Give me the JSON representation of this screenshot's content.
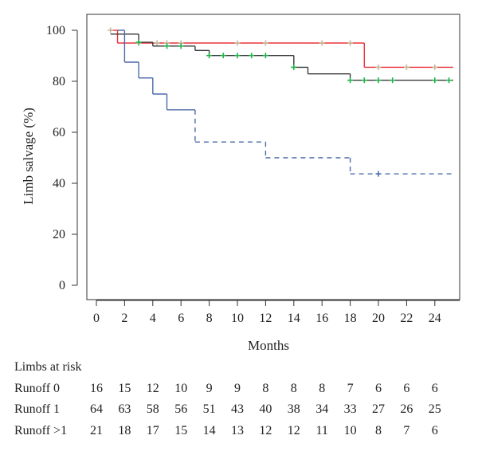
{
  "chart_data": {
    "type": "line",
    "step": true,
    "xlabel": "Months",
    "ylabel": "Limb salvage (%)",
    "xlim": [
      -1,
      25.3
    ],
    "ylim": [
      -5,
      106
    ],
    "x_ticks": [
      "0",
      "2",
      "4",
      "6",
      "8",
      "10",
      "12",
      "14",
      "16",
      "18",
      "20",
      "22",
      "24"
    ],
    "y_ticks": [
      "0",
      "20",
      "40",
      "60",
      "80",
      "100"
    ],
    "grid": false,
    "series": [
      {
        "color": "#e8333a",
        "line_style": "solid",
        "steps": [
          [
            1,
            100
          ],
          [
            1.5,
            95
          ],
          [
            19,
            95
          ],
          [
            19,
            85.5
          ],
          [
            25.3,
            85.5
          ]
        ],
        "censor_marks": [
          [
            1,
            100
          ],
          [
            3,
            95
          ],
          [
            4.3,
            95
          ],
          [
            5,
            95
          ],
          [
            6,
            95
          ],
          [
            10,
            95
          ],
          [
            12,
            95
          ],
          [
            16,
            95
          ],
          [
            18,
            95
          ],
          [
            20,
            85.5
          ],
          [
            22,
            85.5
          ],
          [
            24,
            85.5
          ]
        ],
        "censor_color": "#c8b89a"
      },
      {
        "color": "#3a3a3a",
        "line_style": "solid",
        "steps": [
          [
            1,
            98.5
          ],
          [
            3,
            95.3
          ],
          [
            4,
            93.8
          ],
          [
            7,
            92.1
          ],
          [
            8,
            90.1
          ],
          [
            14,
            85.5
          ],
          [
            15,
            82.9
          ],
          [
            18,
            80.4
          ],
          [
            25.3,
            80.4
          ]
        ],
        "censor_marks": [
          [
            3,
            95.3
          ],
          [
            5,
            93.8
          ],
          [
            6,
            93.8
          ],
          [
            8,
            90.1
          ],
          [
            9,
            90.1
          ],
          [
            10,
            90.1
          ],
          [
            11,
            90.1
          ],
          [
            12,
            90.1
          ],
          [
            14,
            85.5
          ],
          [
            18,
            80.4
          ],
          [
            19,
            80.4
          ],
          [
            20,
            80.4
          ],
          [
            21,
            80.4
          ],
          [
            24,
            80.4
          ],
          [
            25,
            80.4
          ]
        ],
        "censor_color": "#22b14c"
      },
      {
        "color": "#4a6aa8",
        "line_style": "solid",
        "dash_from": 7,
        "steps": [
          [
            1.5,
            100
          ],
          [
            2,
            87.5
          ],
          [
            3,
            81.3
          ],
          [
            4,
            75
          ],
          [
            5,
            68.8
          ],
          [
            7,
            56.2
          ],
          [
            12,
            50
          ],
          [
            18,
            43.7
          ],
          [
            25.3,
            43.7
          ]
        ],
        "censor_marks": [
          [
            20,
            43.7
          ]
        ],
        "censor_color": "#4a6aa8"
      }
    ]
  },
  "risk_table": {
    "title": "Limbs at risk",
    "months": [
      0,
      2,
      4,
      6,
      8,
      10,
      12,
      14,
      16,
      18,
      20,
      22,
      24
    ],
    "rows": [
      {
        "label": "Runoff 0",
        "values": [
          "16",
          "15",
          "12",
          "10",
          "9",
          "9",
          "8",
          "8",
          "8",
          "7",
          "6",
          "6",
          "6"
        ]
      },
      {
        "label": "Runoff 1",
        "values": [
          "64",
          "63",
          "58",
          "56",
          "51",
          "43",
          "40",
          "38",
          "34",
          "33",
          "27",
          "26",
          "25"
        ]
      },
      {
        "label": "Runoff >1",
        "values": [
          "21",
          "18",
          "17",
          "15",
          "14",
          "13",
          "12",
          "12",
          "11",
          "10",
          "8",
          "7",
          "6"
        ]
      }
    ]
  }
}
